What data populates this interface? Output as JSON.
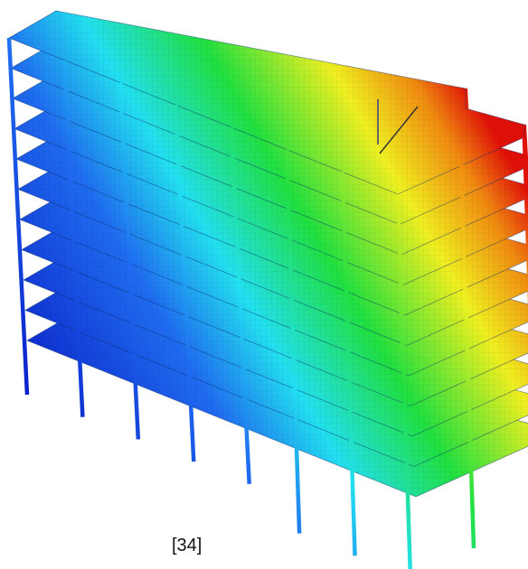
{
  "caption": "[34]"
}
